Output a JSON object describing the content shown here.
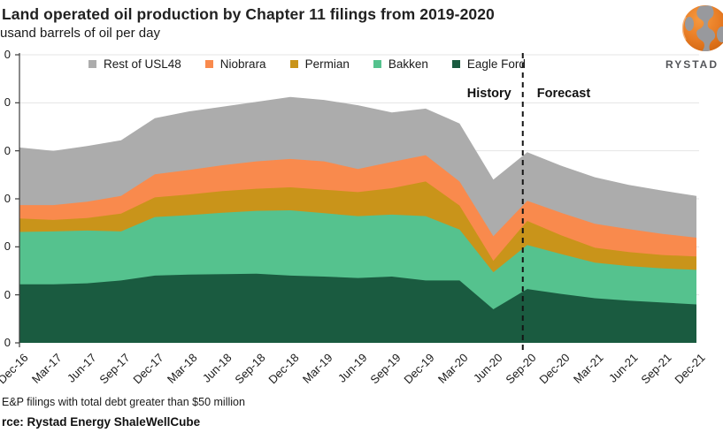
{
  "header": {
    "title": "Land operated oil production by Chapter 11 filings from 2019-2020",
    "subtitle": "usand barrels of oil per day"
  },
  "brand": {
    "name": "RYSTAD",
    "globe_color": "#e87c24",
    "globe_land_color": "#98999d"
  },
  "annotations": {
    "history": "History",
    "forecast": "Forecast"
  },
  "footnotes": {
    "note": "E&P filings with total debt greater than $50 million",
    "source": "rce: Rystad Energy ShaleWellCube"
  },
  "chart_data": {
    "type": "area",
    "stacked": true,
    "title": "Land operated oil production by Chapter 11 filings from 2019-2020",
    "units_label": "usand barrels of oil per day",
    "categories": [
      "Dec-16",
      "Mar-17",
      "Jun-17",
      "Sep-17",
      "Dec-17",
      "Mar-18",
      "Jun-18",
      "Sep-18",
      "Dec-18",
      "Mar-19",
      "Jun-19",
      "Sep-19",
      "Dec-19",
      "Mar-20",
      "Jun-20",
      "Sep-20",
      "Dec-20",
      "Mar-21",
      "Jun-21",
      "Sep-21",
      "Dec-21"
    ],
    "series": [
      {
        "name": "Eagle Ford",
        "color": "#1a5b40",
        "values": [
          610,
          610,
          620,
          650,
          700,
          710,
          715,
          720,
          700,
          690,
          675,
          690,
          650,
          650,
          350,
          560,
          510,
          465,
          440,
          420,
          400
        ]
      },
      {
        "name": "Bakken",
        "color": "#55c28e",
        "values": [
          545,
          550,
          550,
          510,
          610,
          620,
          640,
          655,
          680,
          660,
          645,
          645,
          670,
          530,
          385,
          460,
          415,
          370,
          360,
          355,
          360
        ]
      },
      {
        "name": "Permian",
        "color": "#c9941a",
        "values": [
          140,
          120,
          130,
          185,
          205,
          215,
          225,
          230,
          240,
          245,
          250,
          275,
          360,
          250,
          120,
          250,
          195,
          155,
          145,
          140,
          140
        ]
      },
      {
        "name": "Niobrara",
        "color": "#f98a4d",
        "values": [
          140,
          155,
          170,
          185,
          240,
          255,
          270,
          285,
          295,
          295,
          240,
          275,
          275,
          250,
          255,
          210,
          235,
          250,
          240,
          220,
          195
        ]
      },
      {
        "name": "Rest of USL48",
        "color": "#acacac",
        "values": [
          600,
          565,
          580,
          580,
          585,
          610,
          610,
          620,
          645,
          640,
          665,
          515,
          485,
          605,
          590,
          505,
          490,
          485,
          460,
          450,
          435
        ]
      }
    ],
    "legend_order": [
      "Rest of USL48",
      "Niobrara",
      "Permian",
      "Bakken",
      "Eagle Ford"
    ],
    "legend_position": "top-left",
    "ylim": [
      0,
      3000
    ],
    "ytick_step": 500,
    "yticks_visible_text": "0",
    "grid": true,
    "history_forecast_split": "Sep-20"
  }
}
